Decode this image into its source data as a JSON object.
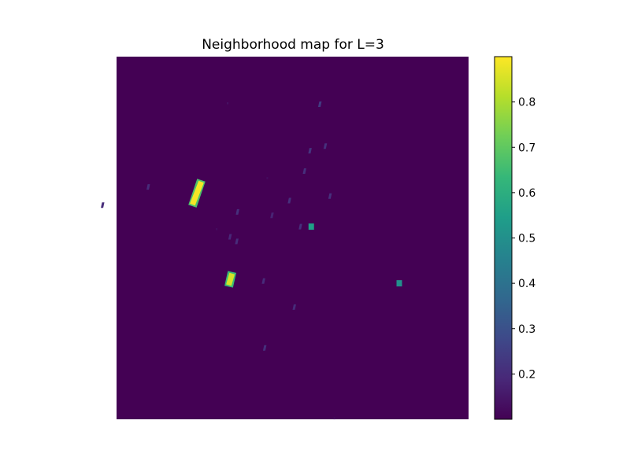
{
  "chart_data": {
    "type": "heatmap",
    "title": "Neighborhood map for L=3",
    "xlabel": "",
    "ylabel": "",
    "axes_visible": false,
    "grid": false,
    "colormap": "viridis",
    "colors": {
      "background": "#440154",
      "low": "#440154",
      "high": "#fde725"
    },
    "value_range": [
      0.1,
      0.9
    ],
    "background_value": 0.1,
    "colorbar": {
      "position": "right",
      "ticks": [
        0.2,
        0.3,
        0.4,
        0.5,
        0.6,
        0.7,
        0.8
      ],
      "tick_labels": [
        "0.2",
        "0.3",
        "0.4",
        "0.5",
        "0.6",
        "0.7",
        "0.8"
      ]
    },
    "features": [
      {
        "kind": "segment",
        "row_start": 109,
        "col_start": 77,
        "row_end": 132,
        "col_end": 69,
        "value": 0.89
      },
      {
        "kind": "segment",
        "row_start": 190,
        "col_start": 105,
        "row_end": 203,
        "col_end": 102,
        "value": 0.85
      },
      {
        "kind": "blob",
        "row": 150,
        "col": 177,
        "value": 0.55
      },
      {
        "kind": "blob",
        "row": 200,
        "col": 257,
        "value": 0.5
      },
      {
        "kind": "blob",
        "row": 42,
        "col": 205,
        "value": 0.24
      },
      {
        "kind": "blob",
        "row": 83,
        "col": 205,
        "value": 0.22
      },
      {
        "kind": "blob",
        "row": 79,
        "col": 218,
        "value": 0.21
      },
      {
        "kind": "blob",
        "row": 101,
        "col": 204,
        "value": 0.21
      },
      {
        "kind": "blob",
        "row": 123,
        "col": 232,
        "value": 0.21
      },
      {
        "kind": "blob",
        "row": 127,
        "col": 196,
        "value": 0.21
      },
      {
        "kind": "blob",
        "row": 137,
        "col": 151,
        "value": 0.21
      },
      {
        "kind": "blob",
        "row": 150,
        "col": 211,
        "value": 0.21
      },
      {
        "kind": "blob",
        "row": 131,
        "col": 27,
        "value": 0.2
      },
      {
        "kind": "blob",
        "row": 115,
        "col": 65,
        "value": 0.2
      },
      {
        "kind": "blob",
        "row": 159,
        "col": 149,
        "value": 0.19
      },
      {
        "kind": "blob",
        "row": 163,
        "col": 156,
        "value": 0.2
      },
      {
        "kind": "blob",
        "row": 198,
        "col": 188,
        "value": 0.2
      },
      {
        "kind": "blob",
        "row": 221,
        "col": 221,
        "value": 0.2
      },
      {
        "kind": "blob",
        "row": 257,
        "col": 202,
        "value": 0.21
      },
      {
        "kind": "blob",
        "row": 140,
        "col": 183,
        "value": 0.18
      },
      {
        "kind": "dot",
        "row": 41,
        "col": 101,
        "value": 0.14
      },
      {
        "kind": "dot",
        "row": 107,
        "col": 137,
        "value": 0.13
      },
      {
        "kind": "dot",
        "row": 152,
        "col": 91,
        "value": 0.13
      },
      {
        "kind": "dot",
        "row": 319,
        "col": 198,
        "value": 0.13
      }
    ]
  }
}
